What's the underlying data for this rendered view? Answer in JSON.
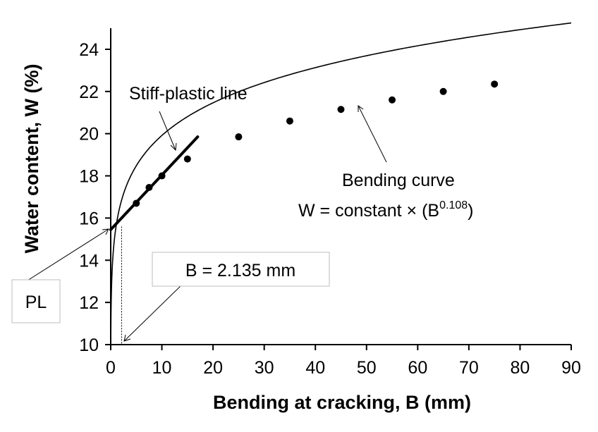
{
  "chart_data": {
    "type": "scatter",
    "xlabel": "Bending at cracking, B (mm)",
    "ylabel": "Water content, W (%)",
    "xlim": [
      0,
      90
    ],
    "ylim": [
      10,
      25
    ],
    "x_ticks": [
      0,
      10,
      20,
      30,
      40,
      50,
      60,
      70,
      80,
      90
    ],
    "y_ticks": [
      10,
      12,
      14,
      16,
      18,
      20,
      22,
      24
    ],
    "grid": false,
    "legend": "none",
    "series": [
      {
        "type": "scatter",
        "color": "#000000",
        "points": [
          {
            "x": 5,
            "y": 16.7
          },
          {
            "x": 7.5,
            "y": 17.45
          },
          {
            "x": 10,
            "y": 18.0
          },
          {
            "x": 15,
            "y": 18.8
          },
          {
            "x": 25,
            "y": 19.85
          },
          {
            "x": 35,
            "y": 20.6
          },
          {
            "x": 45,
            "y": 21.15
          },
          {
            "x": 55,
            "y": 21.6
          },
          {
            "x": 65,
            "y": 22.0
          },
          {
            "x": 75,
            "y": 22.35
          }
        ]
      },
      {
        "type": "curve",
        "color": "#000000",
        "formula": "W = 15.53 * B^0.108",
        "coefficient": 15.53,
        "exponent": 0.108,
        "x_range": [
          0.02,
          90
        ]
      },
      {
        "type": "line",
        "color": "#000000",
        "points": [
          {
            "x": 0,
            "y": 15.45
          },
          {
            "x": 17,
            "y": 19.85
          }
        ]
      },
      {
        "type": "drop-line",
        "color": "#000000",
        "points": [
          {
            "x": 2.135,
            "y": 15.6
          },
          {
            "x": 2.135,
            "y": 10
          }
        ]
      }
    ],
    "annotations": {
      "stiff_plastic": "Stiff-plastic line",
      "bending_curve": "Bending curve",
      "formula_prefix": "W = constant × (B",
      "formula_exponent": "0.108",
      "formula_suffix": ")",
      "pl": "PL",
      "b_value": "B = 2.135 mm"
    }
  }
}
